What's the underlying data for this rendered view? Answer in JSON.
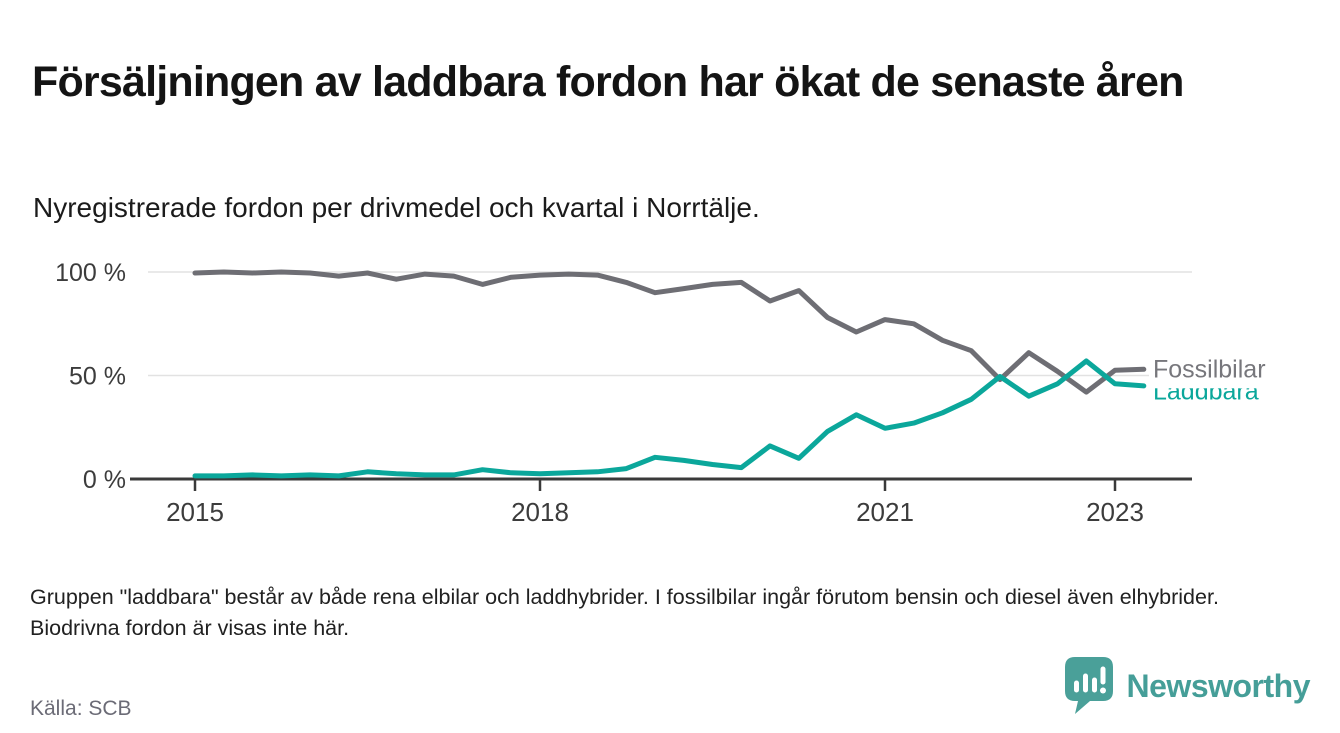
{
  "header": {
    "title": "Försäljningen av laddbara fordon har ökat de senaste åren",
    "subtitle": "Nyregistrerade fordon per drivmedel och kvartal i Norrtälje."
  },
  "chart_data": {
    "type": "line",
    "title": "Nyregistrerade fordon per drivmedel och kvartal i Norrtälje",
    "x_unit": "quarter",
    "categories": [
      "2015 Q1",
      "2015 Q2",
      "2015 Q3",
      "2015 Q4",
      "2016 Q1",
      "2016 Q2",
      "2016 Q3",
      "2016 Q4",
      "2017 Q1",
      "2017 Q2",
      "2017 Q3",
      "2017 Q4",
      "2018 Q1",
      "2018 Q2",
      "2018 Q3",
      "2018 Q4",
      "2019 Q1",
      "2019 Q2",
      "2019 Q3",
      "2019 Q4",
      "2020 Q1",
      "2020 Q2",
      "2020 Q3",
      "2020 Q4",
      "2021 Q1",
      "2021 Q2",
      "2021 Q3",
      "2021 Q4",
      "2022 Q1",
      "2022 Q2",
      "2022 Q3",
      "2022 Q4",
      "2023 Q1",
      "2023 Q2"
    ],
    "series": [
      {
        "name": "Fossilbilar",
        "color": "#6e6e74",
        "label_color": "#77777c",
        "values": [
          99.5,
          100,
          99.5,
          100,
          99.5,
          98,
          99.5,
          96.5,
          99,
          98,
          94,
          97.5,
          98.5,
          99,
          98.5,
          95,
          90,
          92,
          94,
          95,
          86,
          91,
          78,
          71,
          77,
          75,
          67,
          62,
          48,
          61,
          52,
          42,
          52.5,
          53
        ]
      },
      {
        "name": "Laddbara",
        "color": "#0ba79b",
        "label_color": "#0ba79b",
        "values": [
          1.5,
          1.5,
          2,
          1.5,
          2,
          1.5,
          3.5,
          2.5,
          2,
          2,
          4.5,
          3,
          2.5,
          3,
          3.5,
          5,
          10.5,
          9,
          7,
          5.5,
          16,
          10,
          23,
          31,
          24.5,
          27,
          32,
          38.5,
          49.5,
          40,
          46,
          57,
          46,
          45
        ]
      }
    ],
    "y_ticks": [
      {
        "label": "100 %",
        "value": 100
      },
      {
        "label": "50 %",
        "value": 50
      },
      {
        "label": "0 %",
        "value": 0
      }
    ],
    "x_ticks": [
      {
        "label": "2015",
        "index": 0
      },
      {
        "label": "2018",
        "index": 12
      },
      {
        "label": "2021",
        "index": 24
      },
      {
        "label": "2023",
        "index": 32
      }
    ],
    "ylim": [
      0,
      100
    ],
    "unit": "%",
    "grid": "horizontal",
    "legend_position": "end-of-line-labels"
  },
  "footer": {
    "note": "Gruppen \"laddbara\" består av både rena elbilar och laddhybrider. I fossilbilar ingår förutom bensin och diesel även elhybrider. Biodrivna fordon är visas inte här.",
    "source": "Källa: SCB",
    "brand": "Newsworthy"
  },
  "colors": {
    "accent_teal": "#0ba79b",
    "line_gray": "#6e6e74",
    "axis": "#3a3a3a",
    "gridline": "#e2e2e2",
    "logo_teal": "#4aa099"
  }
}
